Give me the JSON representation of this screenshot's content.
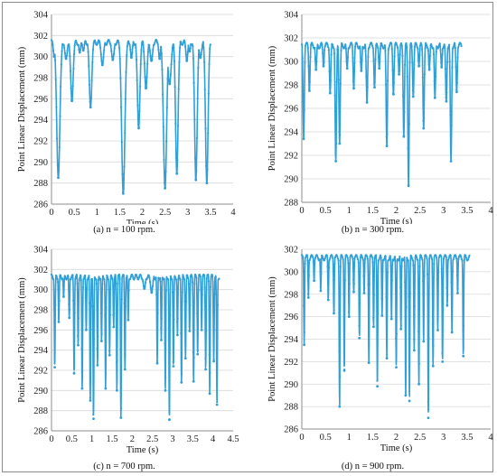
{
  "series_color": "#2f9fd8",
  "grid_color": "#d9d9d9",
  "chart_data": [
    {
      "type": "line",
      "caption": "(a) n = 100 rpm.",
      "xlabel": "Time (s)",
      "ylabel": "Point Linear Displacement (mm)",
      "xlim": [
        0,
        4
      ],
      "ylim": [
        286,
        304
      ],
      "xticks": [
        "0",
        "0.5",
        "1",
        "1.5",
        "2",
        "2.5",
        "3",
        "3.5",
        "4"
      ],
      "yticks": [
        "286",
        "288",
        "290",
        "292",
        "294",
        "296",
        "298",
        "300",
        "302",
        "304"
      ],
      "grid": "horizontal",
      "max_value": 301.6,
      "x_end": 3.5,
      "dips": [
        {
          "t": 0.06,
          "y": 300.0,
          "w": 0.03
        },
        {
          "t": 0.15,
          "y": 288.5,
          "w": 0.05
        },
        {
          "t": 0.32,
          "y": 299.8,
          "w": 0.04
        },
        {
          "t": 0.45,
          "y": 295.8,
          "w": 0.04
        },
        {
          "t": 0.62,
          "y": 300.4,
          "w": 0.03
        },
        {
          "t": 0.7,
          "y": 300.6,
          "w": 0.03
        },
        {
          "t": 0.86,
          "y": 295.2,
          "w": 0.04
        },
        {
          "t": 1.12,
          "y": 299.2,
          "w": 0.04
        },
        {
          "t": 1.35,
          "y": 299.7,
          "w": 0.04
        },
        {
          "t": 1.58,
          "y": 287.0,
          "w": 0.05
        },
        {
          "t": 1.76,
          "y": 299.9,
          "w": 0.03
        },
        {
          "t": 1.92,
          "y": 293.2,
          "w": 0.04
        },
        {
          "t": 2.08,
          "y": 297.0,
          "w": 0.04
        },
        {
          "t": 2.2,
          "y": 299.6,
          "w": 0.04
        },
        {
          "t": 2.38,
          "y": 299.8,
          "w": 0.03
        },
        {
          "t": 2.5,
          "y": 287.5,
          "w": 0.05
        },
        {
          "t": 2.6,
          "y": 297.4,
          "w": 0.05
        },
        {
          "t": 2.76,
          "y": 288.9,
          "w": 0.04
        },
        {
          "t": 2.98,
          "y": 299.6,
          "w": 0.03
        },
        {
          "t": 3.04,
          "y": 300.5,
          "w": 0.03
        },
        {
          "t": 3.18,
          "y": 288.3,
          "w": 0.04
        },
        {
          "t": 3.28,
          "y": 299.9,
          "w": 0.04
        },
        {
          "t": 3.42,
          "y": 288.0,
          "w": 0.04
        }
      ]
    },
    {
      "type": "line",
      "caption": "(b) n = 300 rpm.",
      "xlabel": "Time (s)",
      "ylabel": "Point Linear Displacement (mm)",
      "xlim": [
        0,
        4
      ],
      "ylim": [
        288,
        304
      ],
      "xticks": [
        "0",
        "0.5",
        "1",
        "1.5",
        "2",
        "2.5",
        "3",
        "3.5",
        "4"
      ],
      "yticks": [
        "288",
        "290",
        "292",
        "294",
        "296",
        "298",
        "300",
        "302",
        "304"
      ],
      "grid": "horizontal",
      "max_value": 301.6,
      "x_end": 3.38,
      "dips": [
        {
          "t": 0.04,
          "y": 293.4,
          "w": 0.02
        },
        {
          "t": 0.16,
          "y": 297.5,
          "w": 0.02
        },
        {
          "t": 0.3,
          "y": 299.3,
          "w": 0.02
        },
        {
          "t": 0.46,
          "y": 299.6,
          "w": 0.02
        },
        {
          "t": 0.6,
          "y": 297.3,
          "w": 0.02
        },
        {
          "t": 0.72,
          "y": 291.5,
          "w": 0.02
        },
        {
          "t": 0.8,
          "y": 293.0,
          "w": 0.02
        },
        {
          "t": 0.96,
          "y": 299.4,
          "w": 0.02
        },
        {
          "t": 1.1,
          "y": 297.7,
          "w": 0.02
        },
        {
          "t": 1.26,
          "y": 299.2,
          "w": 0.02
        },
        {
          "t": 1.38,
          "y": 296.5,
          "w": 0.02
        },
        {
          "t": 1.54,
          "y": 297.8,
          "w": 0.02
        },
        {
          "t": 1.64,
          "y": 299.4,
          "w": 0.02
        },
        {
          "t": 1.8,
          "y": 292.8,
          "w": 0.02
        },
        {
          "t": 1.94,
          "y": 297.2,
          "w": 0.02
        },
        {
          "t": 2.06,
          "y": 298.9,
          "w": 0.02
        },
        {
          "t": 2.16,
          "y": 293.6,
          "w": 0.02
        },
        {
          "t": 2.26,
          "y": 289.4,
          "w": 0.02
        },
        {
          "t": 2.36,
          "y": 297.0,
          "w": 0.02
        },
        {
          "t": 2.48,
          "y": 299.6,
          "w": 0.02
        },
        {
          "t": 2.58,
          "y": 294.3,
          "w": 0.02
        },
        {
          "t": 2.7,
          "y": 299.3,
          "w": 0.02
        },
        {
          "t": 2.82,
          "y": 296.9,
          "w": 0.02
        },
        {
          "t": 2.96,
          "y": 299.5,
          "w": 0.02
        },
        {
          "t": 3.06,
          "y": 296.6,
          "w": 0.02
        },
        {
          "t": 3.16,
          "y": 291.5,
          "w": 0.02
        },
        {
          "t": 3.28,
          "y": 297.4,
          "w": 0.02
        }
      ]
    },
    {
      "type": "line",
      "caption": "(c) n = 700 rpm.",
      "xlabel": "Time (s)",
      "ylabel": "Point Linear Displacement (mm)",
      "xlim": [
        0,
        4.5
      ],
      "ylim": [
        286,
        304
      ],
      "xticks": [
        "0",
        "0.5",
        "1",
        "1.5",
        "2",
        "2.5",
        "3",
        "3.5",
        "4",
        "4.5"
      ],
      "yticks": [
        "286",
        "288",
        "290",
        "292",
        "294",
        "296",
        "298",
        "300",
        "302",
        "304"
      ],
      "grid": "horizontal",
      "max_value": 301.5,
      "x_end": 4.15,
      "dips": [
        {
          "t": 0.08,
          "y": 292.3,
          "w": 0.015
        },
        {
          "t": 0.18,
          "y": 296.8,
          "w": 0.015
        },
        {
          "t": 0.3,
          "y": 299.3,
          "w": 0.015
        },
        {
          "t": 0.44,
          "y": 297.2,
          "w": 0.015
        },
        {
          "t": 0.56,
          "y": 291.7,
          "w": 0.015
        },
        {
          "t": 0.66,
          "y": 294.5,
          "w": 0.015
        },
        {
          "t": 0.76,
          "y": 290.2,
          "w": 0.015
        },
        {
          "t": 0.86,
          "y": 296.0,
          "w": 0.015
        },
        {
          "t": 0.96,
          "y": 289.0,
          "w": 0.015
        },
        {
          "t": 1.04,
          "y": 287.2,
          "w": 0.015
        },
        {
          "t": 1.14,
          "y": 292.5,
          "w": 0.015
        },
        {
          "t": 1.24,
          "y": 294.9,
          "w": 0.015
        },
        {
          "t": 1.34,
          "y": 290.2,
          "w": 0.015
        },
        {
          "t": 1.44,
          "y": 293.5,
          "w": 0.015
        },
        {
          "t": 1.54,
          "y": 296.3,
          "w": 0.015
        },
        {
          "t": 1.62,
          "y": 290.0,
          "w": 0.015
        },
        {
          "t": 1.72,
          "y": 287.3,
          "w": 0.015
        },
        {
          "t": 1.82,
          "y": 292.1,
          "w": 0.015
        },
        {
          "t": 1.9,
          "y": 297.0,
          "w": 0.015
        },
        {
          "t": 2.3,
          "y": 300.1,
          "w": 0.04
        },
        {
          "t": 2.48,
          "y": 299.7,
          "w": 0.04
        },
        {
          "t": 2.62,
          "y": 292.7,
          "w": 0.015
        },
        {
          "t": 2.72,
          "y": 295.0,
          "w": 0.015
        },
        {
          "t": 2.82,
          "y": 290.0,
          "w": 0.015
        },
        {
          "t": 2.92,
          "y": 287.1,
          "w": 0.015
        },
        {
          "t": 3.02,
          "y": 292.4,
          "w": 0.015
        },
        {
          "t": 3.12,
          "y": 295.5,
          "w": 0.015
        },
        {
          "t": 3.22,
          "y": 290.8,
          "w": 0.015
        },
        {
          "t": 3.32,
          "y": 293.2,
          "w": 0.015
        },
        {
          "t": 3.42,
          "y": 295.9,
          "w": 0.015
        },
        {
          "t": 3.52,
          "y": 290.9,
          "w": 0.015
        },
        {
          "t": 3.62,
          "y": 293.6,
          "w": 0.015
        },
        {
          "t": 3.72,
          "y": 296.0,
          "w": 0.015
        },
        {
          "t": 3.82,
          "y": 292.1,
          "w": 0.015
        },
        {
          "t": 3.92,
          "y": 289.7,
          "w": 0.015
        },
        {
          "t": 4.02,
          "y": 292.9,
          "w": 0.015
        },
        {
          "t": 4.1,
          "y": 288.6,
          "w": 0.015
        }
      ]
    },
    {
      "type": "line",
      "caption": "(d) n = 900 rpm.",
      "xlabel": "Time (s)",
      "ylabel": "Point Linear Displacement (mm)",
      "xlim": [
        0,
        4
      ],
      "ylim": [
        286,
        302
      ],
      "xticks": [
        "0",
        "0.5",
        "1",
        "1.5",
        "2",
        "2.5",
        "3",
        "3.5",
        "4"
      ],
      "yticks": [
        "286",
        "288",
        "290",
        "292",
        "294",
        "296",
        "298",
        "300",
        "302"
      ],
      "grid": "horizontal",
      "max_value": 301.5,
      "x_end": 3.55,
      "dips": [
        {
          "t": 0.05,
          "y": 293.5,
          "w": 0.012
        },
        {
          "t": 0.14,
          "y": 297.7,
          "w": 0.012
        },
        {
          "t": 0.26,
          "y": 299.2,
          "w": 0.012
        },
        {
          "t": 0.4,
          "y": 298.3,
          "w": 0.012
        },
        {
          "t": 0.56,
          "y": 297.5,
          "w": 0.012
        },
        {
          "t": 0.68,
          "y": 296.3,
          "w": 0.012
        },
        {
          "t": 0.8,
          "y": 288.0,
          "w": 0.012
        },
        {
          "t": 0.9,
          "y": 291.2,
          "w": 0.012
        },
        {
          "t": 1.0,
          "y": 296.0,
          "w": 0.012
        },
        {
          "t": 1.1,
          "y": 298.2,
          "w": 0.012
        },
        {
          "t": 1.22,
          "y": 294.1,
          "w": 0.012
        },
        {
          "t": 1.32,
          "y": 298.1,
          "w": 0.012
        },
        {
          "t": 1.42,
          "y": 291.9,
          "w": 0.012
        },
        {
          "t": 1.52,
          "y": 295.1,
          "w": 0.012
        },
        {
          "t": 1.6,
          "y": 289.8,
          "w": 0.012
        },
        {
          "t": 1.7,
          "y": 296.1,
          "w": 0.012
        },
        {
          "t": 1.8,
          "y": 292.3,
          "w": 0.012
        },
        {
          "t": 1.9,
          "y": 295.8,
          "w": 0.012
        },
        {
          "t": 2.0,
          "y": 291.5,
          "w": 0.012
        },
        {
          "t": 2.1,
          "y": 294.9,
          "w": 0.012
        },
        {
          "t": 2.2,
          "y": 289.0,
          "w": 0.012
        },
        {
          "t": 2.28,
          "y": 288.5,
          "w": 0.012
        },
        {
          "t": 2.38,
          "y": 293.0,
          "w": 0.012
        },
        {
          "t": 2.48,
          "y": 290.0,
          "w": 0.012
        },
        {
          "t": 2.58,
          "y": 293.8,
          "w": 0.012
        },
        {
          "t": 2.68,
          "y": 287.0,
          "w": 0.012
        },
        {
          "t": 2.78,
          "y": 291.6,
          "w": 0.012
        },
        {
          "t": 2.88,
          "y": 294.8,
          "w": 0.012
        },
        {
          "t": 2.98,
          "y": 292.0,
          "w": 0.012
        },
        {
          "t": 3.08,
          "y": 297.0,
          "w": 0.012
        },
        {
          "t": 3.18,
          "y": 294.6,
          "w": 0.012
        },
        {
          "t": 3.3,
          "y": 298.1,
          "w": 0.012
        },
        {
          "t": 3.42,
          "y": 292.5,
          "w": 0.012
        }
      ]
    }
  ]
}
